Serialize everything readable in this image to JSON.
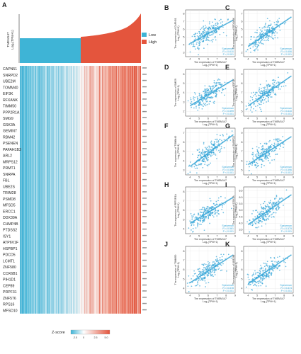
{
  "panel_a": {
    "letter": "A",
    "ylabel_line1": "TMEM147",
    "ylabel_line2": "Log₂(TPM+1)",
    "legend": [
      {
        "label": "Low",
        "color": "#3eb4d6"
      },
      {
        "label": "High",
        "color": "#e4553d"
      }
    ],
    "genes": [
      "CAPN51",
      "SNRPD2",
      "UBE2M",
      "TOMM40",
      "EIF3K",
      "RFXANK",
      "TIMM50",
      "PPP2R1A",
      "SMG9",
      "GSK3A",
      "GEMIN7",
      "RBM42",
      "PSENEN",
      "PAFAH1B3",
      "ARL2",
      "MRPS12",
      "PRMT1",
      "SNRPA",
      "FBL",
      "UBE2S",
      "TRIM28",
      "PSMD8",
      "MFSD5",
      "ERCC1",
      "DDX39A",
      "CHMP4B",
      "PTDSS2",
      "ISY1",
      "ATP6V1F",
      "HSPBP1",
      "PDCD5",
      "LCMT1",
      "ZNF580",
      "COX6B1",
      "PIH1D1",
      "CEP89",
      "PRPF31",
      "ZNF576",
      "RPS16",
      "MFSD10"
    ],
    "significance": "***",
    "colorbar": {
      "title": "Z-score",
      "ticks": [
        "-2.5",
        "0",
        "2.5",
        "5.0"
      ],
      "colors": [
        "#3eb4d6",
        "#ffffff",
        "#e4553d"
      ]
    }
  },
  "chart_data": [
    {
      "type": "scatter",
      "panel": "B",
      "gene": "CAPN51",
      "xlabel_line1": "The expression of TMEM147",
      "xlabel_line2": "Log₂(TPM+1)",
      "ylabel_line1": "The expression of CAPN51",
      "ylabel_line2": "Log₂(TPM+1)",
      "xticks": [
        "4",
        "5",
        "6",
        "7",
        "8",
        "9"
      ],
      "yticks": [
        "3",
        "4",
        "5",
        "6",
        "7",
        "8"
      ],
      "xlim": [
        3.5,
        9
      ],
      "ylim": [
        2.5,
        8.5
      ],
      "fit": [
        [
          4,
          4.2
        ],
        [
          8.8,
          7.2
        ]
      ],
      "stat_lines": [
        "Spearman",
        "R = 0.610",
        "P < 0.001"
      ]
    },
    {
      "type": "scatter",
      "panel": "C",
      "gene": "RFXANK",
      "xlabel_line1": "The expression of TMEM147",
      "xlabel_line2": "Log₂(TPM+1)",
      "ylabel_line1": "The expression of RFXANK",
      "ylabel_line2": "Log₂(TPM+1)",
      "xticks": [
        "4",
        "5",
        "6",
        "7",
        "8",
        "9"
      ],
      "yticks": [
        "2",
        "3",
        "4",
        "5",
        "6",
        "7"
      ],
      "xlim": [
        3.5,
        9
      ],
      "ylim": [
        1.5,
        7.5
      ],
      "fit": [
        [
          4,
          2.8
        ],
        [
          8.8,
          6.6
        ]
      ],
      "stat_lines": [
        "Spearman",
        "R = 0.606",
        "P < 0.001"
      ]
    },
    {
      "type": "scatter",
      "panel": "D",
      "gene": "SMG9",
      "xlabel_line1": "The expression of TMEM147",
      "xlabel_line2": "Log₂(TPM+1)",
      "ylabel_line1": "The expression of SMG9",
      "ylabel_line2": "Log₂(TPM+1)",
      "xticks": [
        "4",
        "5",
        "6",
        "7",
        "8",
        "9"
      ],
      "yticks": [
        "2",
        "3",
        "4",
        "5",
        "6"
      ],
      "xlim": [
        3.5,
        9
      ],
      "ylim": [
        1.5,
        6.5
      ],
      "fit": [
        [
          4,
          2.6
        ],
        [
          8.8,
          5.4
        ]
      ],
      "stat_lines": [
        "Spearman",
        "R = 0.599",
        "P < 0.001"
      ]
    },
    {
      "type": "scatter",
      "panel": "E",
      "gene": "EIF3K",
      "xlabel_line1": "The expression of TMEM147",
      "xlabel_line2": "Log₂(TPM+1)",
      "ylabel_line1": "The expression of EIF3K",
      "ylabel_line2": "Log₂(TPM+1)",
      "xticks": [
        "4",
        "5",
        "6",
        "7",
        "8",
        "9"
      ],
      "yticks": [
        "5",
        "6",
        "7",
        "8",
        "9"
      ],
      "xlim": [
        3.5,
        9
      ],
      "ylim": [
        4.5,
        9.5
      ],
      "fit": [
        [
          4,
          5.6
        ],
        [
          8.8,
          8.8
        ]
      ],
      "stat_lines": [
        "Spearman",
        "R = 0.610",
        "P < 0.001"
      ]
    },
    {
      "type": "scatter",
      "panel": "F",
      "gene": "TOMM40",
      "xlabel_line1": "The expression of TMEM147",
      "xlabel_line2": "Log₂(TPM+1)",
      "ylabel_line1": "The expression of TOMM40",
      "ylabel_line2": "Log₂(TPM+1)",
      "xticks": [
        "4",
        "5",
        "6",
        "7",
        "8",
        "9"
      ],
      "yticks": [
        "3",
        "4",
        "5",
        "6",
        "7"
      ],
      "xlim": [
        3.5,
        9
      ],
      "ylim": [
        2.5,
        7.5
      ],
      "fit": [
        [
          4,
          3.4
        ],
        [
          8.8,
          6.8
        ]
      ],
      "stat_lines": [
        "Spearman",
        "R = 0.596",
        "P < 0.001"
      ]
    },
    {
      "type": "scatter",
      "panel": "G",
      "gene": "SNRPD2",
      "xlabel_line1": "The expression of TMEM147",
      "xlabel_line2": "Log₂(TPM+1)",
      "ylabel_line1": "The expression of SNRPD2",
      "ylabel_line2": "Log₂(TPM+1)",
      "xticks": [
        "4",
        "5",
        "6",
        "7",
        "8",
        "9"
      ],
      "yticks": [
        "5",
        "6",
        "7",
        "8",
        "9"
      ],
      "xlim": [
        3.5,
        9
      ],
      "ylim": [
        4.5,
        9.5
      ],
      "fit": [
        [
          4,
          5.6
        ],
        [
          8.8,
          8.6
        ]
      ],
      "stat_lines": [
        "Spearman",
        "R = 0.596",
        "P < 0.001"
      ]
    },
    {
      "type": "scatter",
      "panel": "H",
      "gene": "PPP2R1A",
      "xlabel_line1": "The expression of TMEM147",
      "xlabel_line2": "Log₂(TPM+1)",
      "ylabel_line1": "The expression of PPP2R1A",
      "ylabel_line2": "Log₂(TPM+1)",
      "xticks": [
        "4",
        "5",
        "6",
        "7",
        "8",
        "9"
      ],
      "yticks": [
        "4",
        "5",
        "6",
        "7",
        "8"
      ],
      "xlim": [
        3.5,
        9
      ],
      "ylim": [
        3.5,
        8.5
      ],
      "fit": [
        [
          4,
          4.6
        ],
        [
          8.8,
          7.4
        ]
      ],
      "stat_lines": [
        "Spearman",
        "R = 0.581",
        "P < 0.001"
      ]
    },
    {
      "type": "scatter",
      "panel": "I",
      "gene": "GSK3A",
      "xlabel_line1": "The expression of TMEM147",
      "xlabel_line2": "Log₂(TPM+1)",
      "ylabel_line1": "The expression of GSK3A",
      "ylabel_line2": "Log₂(TPM+1)",
      "xticks": [
        "4",
        "5",
        "6",
        "7",
        "8",
        "9"
      ],
      "yticks": [
        "3.5",
        "4.0",
        "4.5",
        "5.0",
        "5.5",
        "6.0",
        "6.5"
      ],
      "xlim": [
        3.5,
        9
      ],
      "ylim": [
        3.2,
        6.8
      ],
      "fit": [
        [
          4,
          3.9
        ],
        [
          8.8,
          6.2
        ]
      ],
      "stat_lines": [
        "Spearman",
        "R = 0.579",
        "P < 0.001"
      ]
    },
    {
      "type": "scatter",
      "panel": "J",
      "gene": "TIMM50",
      "xlabel_line1": "The expression of TMEM147",
      "xlabel_line2": "Log₂(TPM+1)",
      "ylabel_line1": "The expression of TIMM50",
      "ylabel_line2": "Log₂(TPM+1)",
      "xticks": [
        "4",
        "5",
        "6",
        "7",
        "8",
        "9"
      ],
      "yticks": [
        "4",
        "5",
        "6",
        "7",
        "8"
      ],
      "xlim": [
        3.5,
        9
      ],
      "ylim": [
        3.5,
        8.5
      ],
      "fit": [
        [
          4,
          4.6
        ],
        [
          8.8,
          7.6
        ]
      ],
      "stat_lines": [
        "Spearman",
        "R = 0.578",
        "P < 0.001"
      ]
    },
    {
      "type": "scatter",
      "panel": "K",
      "gene": "UBE2M",
      "xlabel_line1": "The expression of TMEM147",
      "xlabel_line2": "Log₂(TPM+1)",
      "ylabel_line1": "The expression of UBE2M",
      "ylabel_line2": "Log₂(TPM+1)",
      "xticks": [
        "4",
        "5",
        "6",
        "7",
        "8",
        "9"
      ],
      "yticks": [
        "4",
        "5",
        "6",
        "7",
        "8"
      ],
      "xlim": [
        3.5,
        9
      ],
      "ylim": [
        3.5,
        8.5
      ],
      "fit": [
        [
          4,
          4.5
        ],
        [
          8.8,
          7.6
        ]
      ],
      "stat_lines": [
        "Spearman",
        "R = 0.574",
        "P < 0.001"
      ]
    }
  ]
}
